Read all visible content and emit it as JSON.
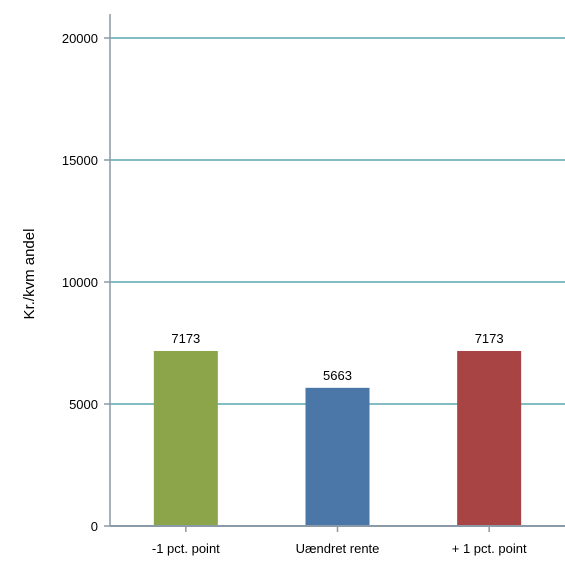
{
  "chart_data": {
    "type": "bar",
    "categories": [
      "-1 pct. point",
      "Uændret rente",
      "+ 1 pct. point"
    ],
    "values": [
      7173,
      5663,
      7173
    ],
    "data_labels": [
      "7173",
      "5663",
      "7173"
    ],
    "colors": [
      "#8ca54b",
      "#4a76a8",
      "#a84444"
    ],
    "ylabel": "Kr./kvm andel",
    "ylim": [
      0,
      20000
    ],
    "yticks": [
      0,
      5000,
      10000,
      15000,
      20000
    ],
    "ytick_labels": [
      "0",
      "5000",
      "10000",
      "15000",
      "20000"
    ],
    "grid": true,
    "grid_color": "#5ba5b0",
    "axis_color": "#8a9aa6"
  }
}
